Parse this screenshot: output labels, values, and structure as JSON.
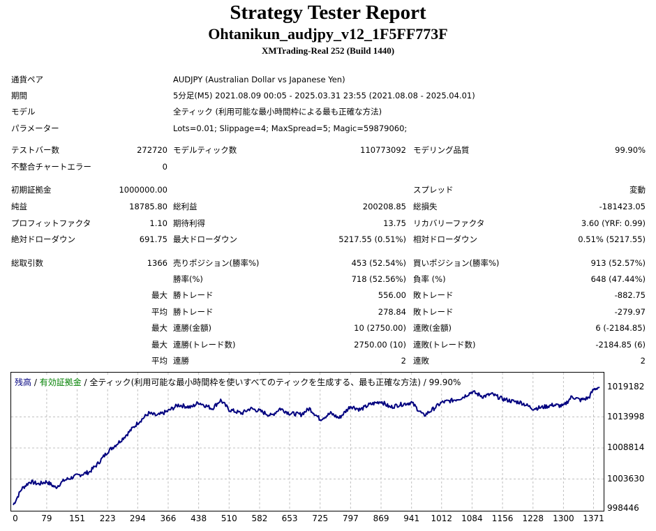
{
  "header": {
    "title": "Strategy Tester Report",
    "ea_name": "Ohtanikun_audjpy_v12_1F5FF773F",
    "server": "XMTrading-Real 252 (Build 1440)"
  },
  "info": {
    "symbol_label": "通貨ペア",
    "symbol_value": "AUDJPY (Australian Dollar vs Japanese Yen)",
    "period_label": "期間",
    "period_value": "5分足(M5) 2021.08.09 00:05 - 2025.03.31 23:55 (2021.08.08 - 2025.04.01)",
    "model_label": "モデル",
    "model_value": "全ティック (利用可能な最小時間枠による最も正確な方法)",
    "params_label": "パラメーター",
    "params_value": "Lots=0.01; Slippage=4; MaxSpread=5; Magic=59879060;"
  },
  "stats": {
    "bars_label": "テストバー数",
    "bars_value": "272720",
    "ticks_label": "モデルティック数",
    "ticks_value": "110773092",
    "quality_label": "モデリング品質",
    "quality_value": "99.90%",
    "mismatch_label": "不整合チャートエラー",
    "mismatch_value": "0",
    "deposit_label": "初期証拠金",
    "deposit_value": "1000000.00",
    "spread_label": "スプレッド",
    "spread_value": "変動",
    "net_label": "純益",
    "net_value": "18785.80",
    "gross_profit_label": "総利益",
    "gross_profit_value": "200208.85",
    "gross_loss_label": "総損失",
    "gross_loss_value": "-181423.05",
    "pf_label": "プロフィットファクタ",
    "pf_value": "1.10",
    "payoff_label": "期待利得",
    "payoff_value": "13.75",
    "recovery_label": "リカバリーファクタ",
    "recovery_value": "3.60 (YRF: 0.99)",
    "abs_dd_label": "絶対ドローダウン",
    "abs_dd_value": "691.75",
    "max_dd_label": "最大ドローダウン",
    "max_dd_value": "5217.55 (0.51%)",
    "rel_dd_label": "相対ドローダウン",
    "rel_dd_value": "0.51% (5217.55)",
    "trades_label": "総取引数",
    "trades_value": "1366",
    "short_label": "売りポジション(勝率%)",
    "short_value": "453 (52.54%)",
    "long_label": "買いポジション(勝率%)",
    "long_value": "913 (52.57%)",
    "winrate_label": "勝率(%)",
    "winrate_value": "718 (52.56%)",
    "lossrate_label": "負率 (%)",
    "lossrate_value": "648 (47.44%)",
    "max_prefix": "最大",
    "avg_prefix": "平均",
    "largest_win_label": "勝トレード",
    "largest_win_value": "556.00",
    "largest_loss_label": "敗トレード",
    "largest_loss_value": "-882.75",
    "avg_win_label": "勝トレード",
    "avg_win_value": "278.84",
    "avg_loss_label": "敗トレード",
    "avg_loss_value": "-279.97",
    "max_consec_win_label": "連勝(金額)",
    "max_consec_win_value": "10 (2750.00)",
    "max_consec_loss_label": "連敗(金額)",
    "max_consec_loss_value": "6 (-2184.85)",
    "max_consec_profit_label": "連勝(トレード数)",
    "max_consec_profit_value": "2750.00 (10)",
    "max_consec_lossamt_label": "連敗(トレード数)",
    "max_consec_lossamt_value": "-2184.85 (6)",
    "avg_consec_win_label": "連勝",
    "avg_consec_win_value": "2",
    "avg_consec_loss_label": "連敗",
    "avg_consec_loss_value": "2"
  },
  "legend": {
    "balance": "残高",
    "sep1": " / ",
    "equity": "有効証拠金",
    "rest": " / 全ティック(利用可能な最小時間枠を使いすべてのティックを生成する、最も正確な方法) / 99.90%"
  },
  "colors": {
    "balance": "#00007f",
    "equity": "#008000",
    "grid": "#c0c0c0"
  },
  "chart_data": {
    "type": "line",
    "series": [
      {
        "name": "残高",
        "x": [
          0,
          20,
          40,
          60,
          79,
          100,
          120,
          151,
          180,
          200,
          223,
          250,
          270,
          294,
          320,
          340,
          366,
          390,
          420,
          438,
          470,
          490,
          510,
          540,
          560,
          582,
          610,
          630,
          653,
          680,
          700,
          725,
          750,
          770,
          797,
          820,
          840,
          869,
          890,
          910,
          941,
          970,
          990,
          1012,
          1040,
          1060,
          1084,
          1110,
          1130,
          1156,
          1180,
          1200,
          1228,
          1250,
          1275,
          1300,
          1320,
          1340,
          1360,
          1371,
          1385
        ],
        "y": [
          999300,
          1002000,
          1003200,
          1002800,
          1003200,
          1002200,
          1003400,
          1004200,
          1004800,
          1006200,
          1008200,
          1009800,
          1011200,
          1013000,
          1014600,
          1014200,
          1015000,
          1016000,
          1015600,
          1016400,
          1015400,
          1016800,
          1015200,
          1014600,
          1015400,
          1015000,
          1014200,
          1015400,
          1014600,
          1014400,
          1015400,
          1013600,
          1014600,
          1013800,
          1015800,
          1015200,
          1016000,
          1016600,
          1015600,
          1016000,
          1016400,
          1014200,
          1015200,
          1016400,
          1016800,
          1017200,
          1018200,
          1017400,
          1017800,
          1017000,
          1016600,
          1016400,
          1015400,
          1015600,
          1016000,
          1015800,
          1017400,
          1016800,
          1017200,
          1018600,
          1019000
        ]
      }
    ],
    "yticks": [
      "1019182",
      "1013998",
      "1008814",
      "1003630",
      "998446"
    ],
    "xticks": [
      "0",
      "79",
      "151",
      "223",
      "294",
      "366",
      "438",
      "510",
      "582",
      "653",
      "725",
      "797",
      "869",
      "941",
      "1012",
      "1084",
      "1156",
      "1228",
      "1300",
      "1371"
    ],
    "ylim": [
      998446,
      1019182
    ],
    "xlim": [
      0,
      1390
    ],
    "grid": true
  }
}
